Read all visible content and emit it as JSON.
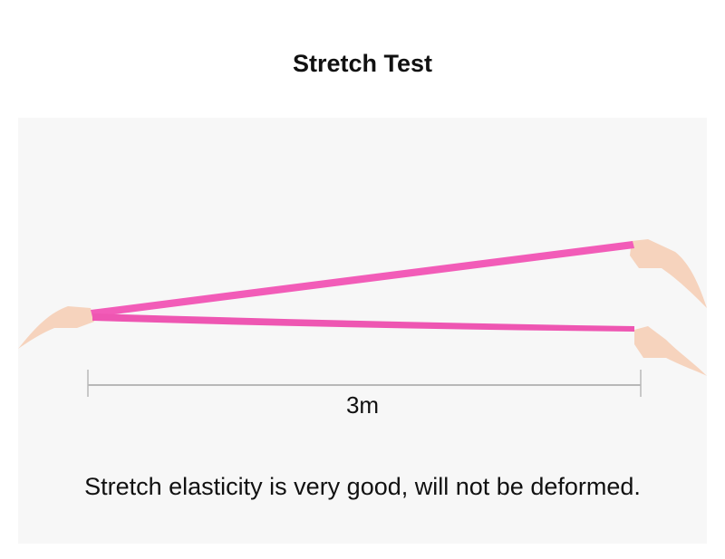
{
  "title": "Stretch Test",
  "measurement_label": "3m",
  "caption": "Stretch elasticity is very good, will not be deformed.",
  "colors": {
    "band": "#f25cb8",
    "skin": "#f6d3bd",
    "background": "#f7f7f7",
    "measure_line": "#b8b8b8"
  }
}
